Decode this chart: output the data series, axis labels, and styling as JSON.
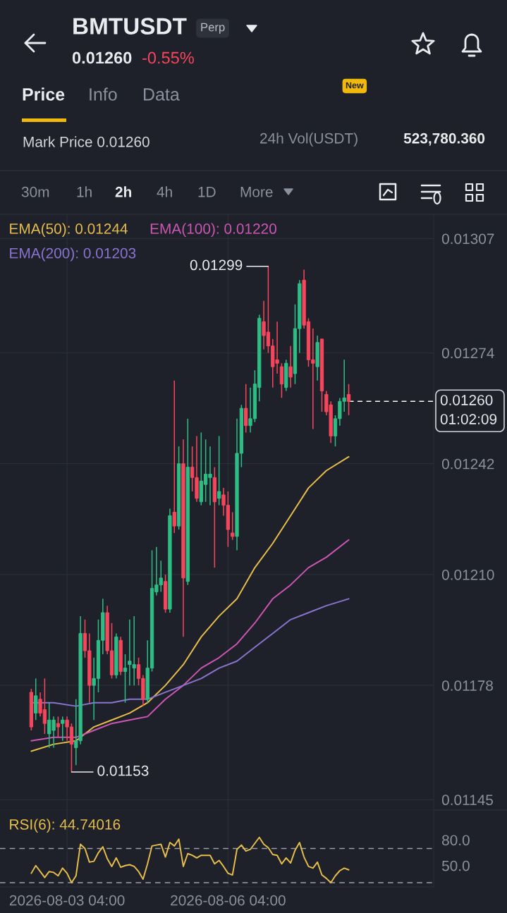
{
  "chart_data": [
    {
      "type": "candlestick",
      "title": "BMTUSDT",
      "x": [
        "2026-08-02T12:00",
        "2026-08-02T14:00",
        "2026-08-02T16:00",
        "2026-08-02T18:00",
        "2026-08-02T20:00",
        "2026-08-02T22:00",
        "2026-08-03T00:00",
        "2026-08-03T02:00",
        "2026-08-03T04:00",
        "2026-08-03T06:00",
        "2026-08-03T08:00",
        "2026-08-03T10:00",
        "2026-08-03T12:00",
        "2026-08-03T14:00",
        "2026-08-03T16:00",
        "2026-08-03T18:00",
        "2026-08-03T20:00",
        "2026-08-03T22:00",
        "2026-08-04T00:00",
        "2026-08-04T02:00",
        "2026-08-04T04:00",
        "2026-08-04T06:00",
        "2026-08-04T08:00",
        "2026-08-04T10:00",
        "2026-08-04T12:00",
        "2026-08-04T14:00",
        "2026-08-04T16:00",
        "2026-08-04T18:00",
        "2026-08-04T20:00",
        "2026-08-04T22:00",
        "2026-08-05T00:00",
        "2026-08-05T02:00",
        "2026-08-05T04:00",
        "2026-08-05T06:00",
        "2026-08-05T08:00",
        "2026-08-05T10:00",
        "2026-08-05T12:00",
        "2026-08-05T14:00",
        "2026-08-05T16:00",
        "2026-08-05T18:00",
        "2026-08-05T20:00",
        "2026-08-05T22:00",
        "2026-08-06T00:00",
        "2026-08-06T02:00",
        "2026-08-06T04:00",
        "2026-08-06T06:00",
        "2026-08-06T08:00",
        "2026-08-06T10:00",
        "2026-08-06T12:00",
        "2026-08-06T14:00",
        "2026-08-06T16:00",
        "2026-08-06T18:00",
        "2026-08-06T20:00",
        "2026-08-06T22:00",
        "2026-08-07T00:00",
        "2026-08-07T02:00",
        "2026-08-07T04:00",
        "2026-08-07T06:00",
        "2026-08-07T08:00",
        "2026-08-07T10:00",
        "2026-08-07T12:00",
        "2026-08-07T14:00",
        "2026-08-07T16:00",
        "2026-08-07T18:00",
        "2026-08-07T20:00",
        "2026-08-07T22:00",
        "2026-08-08T00:00",
        "2026-08-08T02:00",
        "2026-08-08T04:00",
        "2026-08-08T06:00",
        "2026-08-08T08:00",
        "2026-08-08T10:00"
      ],
      "ohlc": [
        [
          0.01176,
          0.01177,
          0.01165,
          0.01166
        ],
        [
          0.0117,
          0.0118,
          0.01168,
          0.01175
        ],
        [
          0.01174,
          0.01176,
          0.01169,
          0.0117
        ],
        [
          0.01171,
          0.0118,
          0.01164,
          0.01167
        ],
        [
          0.01164,
          0.01173,
          0.0116,
          0.01168
        ],
        [
          0.01165,
          0.01169,
          0.0116,
          0.01168
        ],
        [
          0.01167,
          0.01169,
          0.01163,
          0.01166
        ],
        [
          0.01167,
          0.01169,
          0.01162,
          0.01168
        ],
        [
          0.01168,
          0.01169,
          0.01162,
          0.01166
        ],
        [
          0.01166,
          0.01167,
          0.01153,
          0.01161
        ],
        [
          0.0116,
          0.01174,
          0.01155,
          0.01162
        ],
        [
          0.01162,
          0.01198,
          0.01161,
          0.01193
        ],
        [
          0.01193,
          0.01197,
          0.01186,
          0.01188
        ],
        [
          0.01188,
          0.01193,
          0.01173,
          0.01178
        ],
        [
          0.01178,
          0.01186,
          0.01168,
          0.0118
        ],
        [
          0.0118,
          0.01197,
          0.01176,
          0.01191
        ],
        [
          0.01191,
          0.01203,
          0.01187,
          0.01199
        ],
        [
          0.01199,
          0.01201,
          0.01187,
          0.01188
        ],
        [
          0.01188,
          0.01196,
          0.0118,
          0.01181
        ],
        [
          0.01181,
          0.01193,
          0.0118,
          0.01192
        ],
        [
          0.01191,
          0.01192,
          0.01181,
          0.01182
        ],
        [
          0.01182,
          0.01187,
          0.01173,
          0.01183
        ],
        [
          0.01184,
          0.01197,
          0.01178,
          0.01185
        ],
        [
          0.01183,
          0.01198,
          0.01178,
          0.01184
        ],
        [
          0.01184,
          0.01186,
          0.01178,
          0.0118
        ],
        [
          0.0118,
          0.01181,
          0.01172,
          0.01174
        ],
        [
          0.01174,
          0.01191,
          0.01173,
          0.01183
        ],
        [
          0.01183,
          0.01217,
          0.01182,
          0.01206
        ],
        [
          0.01205,
          0.01218,
          0.01204,
          0.01207
        ],
        [
          0.01207,
          0.01214,
          0.01205,
          0.01209
        ],
        [
          0.01208,
          0.0121,
          0.01199,
          0.012
        ],
        [
          0.012,
          0.01229,
          0.01199,
          0.01227
        ],
        [
          0.01228,
          0.01266,
          0.01222,
          0.01224
        ],
        [
          0.01224,
          0.01247,
          0.01223,
          0.01242
        ],
        [
          0.01242,
          0.01249,
          0.01192,
          0.01209
        ],
        [
          0.01208,
          0.01255,
          0.01207,
          0.01241
        ],
        [
          0.01241,
          0.01247,
          0.01234,
          0.01238
        ],
        [
          0.01238,
          0.0125,
          0.01231,
          0.01232
        ],
        [
          0.01231,
          0.01251,
          0.0123,
          0.01237
        ],
        [
          0.01236,
          0.01249,
          0.01231,
          0.01239
        ],
        [
          0.01238,
          0.01247,
          0.0123,
          0.01239
        ],
        [
          0.01238,
          0.01241,
          0.01212,
          0.01231
        ],
        [
          0.01232,
          0.0125,
          0.0123,
          0.01234
        ],
        [
          0.01233,
          0.01235,
          0.01227,
          0.0123
        ],
        [
          0.0123,
          0.01234,
          0.01218,
          0.01223
        ],
        [
          0.01222,
          0.01228,
          0.0122,
          0.01221
        ],
        [
          0.01221,
          0.01255,
          0.01217,
          0.01245
        ],
        [
          0.01245,
          0.01259,
          0.01241,
          0.01258
        ],
        [
          0.01258,
          0.01265,
          0.01251,
          0.01253
        ],
        [
          0.01253,
          0.01264,
          0.01251,
          0.01255
        ],
        [
          0.01255,
          0.01269,
          0.01254,
          0.01265
        ],
        [
          0.01264,
          0.01285,
          0.0126,
          0.01284
        ],
        [
          0.01283,
          0.01289,
          0.01275,
          0.01279
        ],
        [
          0.0128,
          0.01299,
          0.01274,
          0.01276
        ],
        [
          0.01276,
          0.01278,
          0.01264,
          0.0127
        ],
        [
          0.01272,
          0.01283,
          0.01268,
          0.01271
        ],
        [
          0.0127,
          0.01271,
          0.01261,
          0.01265
        ],
        [
          0.01264,
          0.01272,
          0.01263,
          0.01271
        ],
        [
          0.0127,
          0.01276,
          0.01264,
          0.01267
        ],
        [
          0.01268,
          0.01288,
          0.01265,
          0.01281
        ],
        [
          0.01281,
          0.01295,
          0.01274,
          0.01294
        ],
        [
          0.01295,
          0.01298,
          0.01281,
          0.01282
        ],
        [
          0.01283,
          0.01284,
          0.0127,
          0.01272
        ],
        [
          0.01272,
          0.01281,
          0.01252,
          0.01271
        ],
        [
          0.0127,
          0.01279,
          0.01266,
          0.01277
        ],
        [
          0.01278,
          0.01278,
          0.01257,
          0.01263
        ],
        [
          0.01262,
          0.01263,
          0.01256,
          0.01257
        ],
        [
          0.01259,
          0.0126,
          0.01248,
          0.0125
        ],
        [
          0.0125,
          0.01256,
          0.01247,
          0.01255
        ],
        [
          0.01255,
          0.01261,
          0.01253,
          0.0126
        ],
        [
          0.0126,
          0.01272,
          0.01257,
          0.01261
        ],
        [
          0.01262,
          0.01265,
          0.01256,
          0.0126
        ]
      ],
      "colors": [
        "#f6465d",
        "#2ebd85",
        "#f6465d",
        "#f6465d",
        "#2ebd85",
        "#2ebd85",
        "#f6465d",
        "#2ebd85",
        "#f6465d",
        "#f6465d",
        "#2ebd85",
        "#2ebd85",
        "#f6465d",
        "#f6465d",
        "#2ebd85",
        "#2ebd85",
        "#2ebd85",
        "#f6465d",
        "#f6465d",
        "#2ebd85",
        "#f6465d",
        "#2ebd85",
        "#2ebd85",
        "#2ebd85",
        "#f6465d",
        "#f6465d",
        "#2ebd85",
        "#2ebd85",
        "#2ebd85",
        "#2ebd85",
        "#f6465d",
        "#2ebd85",
        "#f6465d",
        "#2ebd85",
        "#f6465d",
        "#2ebd85",
        "#f6465d",
        "#f6465d",
        "#2ebd85",
        "#2ebd85",
        "#2ebd85",
        "#f6465d",
        "#2ebd85",
        "#f6465d",
        "#f6465d",
        "#f6465d",
        "#2ebd85",
        "#2ebd85",
        "#f6465d",
        "#2ebd85",
        "#2ebd85",
        "#2ebd85",
        "#f6465d",
        "#f6465d",
        "#f6465d",
        "#f6465d",
        "#f6465d",
        "#2ebd85",
        "#f6465d",
        "#2ebd85",
        "#2ebd85",
        "#f6465d",
        "#f6465d",
        "#f6465d",
        "#2ebd85",
        "#f6465d",
        "#f6465d",
        "#f6465d",
        "#2ebd85",
        "#2ebd85",
        "#2ebd85",
        "#f6465d"
      ],
      "series": [
        {
          "name": "EMA(50): 0.01244",
          "type": "line",
          "color": "#e8bf4a",
          "x": [
            "2026-08-02T12:00",
            "2026-08-02T22:00",
            "2026-08-03T08:00",
            "2026-08-03T16:00",
            "2026-08-04T00:00",
            "2026-08-04T08:00",
            "2026-08-04T16:00",
            "2026-08-05T00:00",
            "2026-08-05T08:00",
            "2026-08-05T16:00",
            "2026-08-06T00:00",
            "2026-08-06T08:00",
            "2026-08-06T16:00",
            "2026-08-07T00:00",
            "2026-08-07T08:00",
            "2026-08-07T16:00",
            "2026-08-08T00:00",
            "2026-08-08T10:00"
          ],
          "values": [
            0.01159,
            0.01161,
            0.01162,
            0.01166,
            0.01168,
            0.0117,
            0.01173,
            0.01178,
            0.01184,
            0.01192,
            0.01198,
            0.01203,
            0.01212,
            0.01219,
            0.01227,
            0.01235,
            0.0124,
            0.01244
          ]
        },
        {
          "name": "EMA(100): 0.01220",
          "type": "line",
          "color": "#cf56b4",
          "x": [
            "2026-08-02T12:00",
            "2026-08-02T22:00",
            "2026-08-03T08:00",
            "2026-08-03T16:00",
            "2026-08-04T00:00",
            "2026-08-04T08:00",
            "2026-08-04T16:00",
            "2026-08-05T00:00",
            "2026-08-05T08:00",
            "2026-08-05T16:00",
            "2026-08-06T00:00",
            "2026-08-06T08:00",
            "2026-08-06T16:00",
            "2026-08-07T00:00",
            "2026-08-07T08:00",
            "2026-08-07T16:00",
            "2026-08-08T00:00",
            "2026-08-08T10:00"
          ],
          "values": [
            0.01162,
            0.01163,
            0.01163,
            0.01165,
            0.01167,
            0.01168,
            0.01169,
            0.01174,
            0.01178,
            0.01183,
            0.01186,
            0.0119,
            0.01196,
            0.01203,
            0.01207,
            0.01212,
            0.01215,
            0.0122
          ]
        },
        {
          "name": "EMA(200): 0.01203",
          "type": "line",
          "color": "#8a74d0",
          "x": [
            "2026-08-02T12:00",
            "2026-08-02T22:00",
            "2026-08-03T08:00",
            "2026-08-03T16:00",
            "2026-08-04T00:00",
            "2026-08-04T08:00",
            "2026-08-04T16:00",
            "2026-08-05T00:00",
            "2026-08-05T08:00",
            "2026-08-05T16:00",
            "2026-08-06T00:00",
            "2026-08-06T08:00",
            "2026-08-06T16:00",
            "2026-08-07T00:00",
            "2026-08-07T08:00",
            "2026-08-07T16:00",
            "2026-08-08T00:00",
            "2026-08-08T10:00"
          ],
          "values": [
            0.01173,
            0.01173,
            0.01172,
            0.01173,
            0.01173,
            0.01174,
            0.01174,
            0.01176,
            0.01178,
            0.0118,
            0.01183,
            0.01185,
            0.01189,
            0.01193,
            0.01197,
            0.01199,
            0.01201,
            0.01203
          ]
        }
      ],
      "xlim": [
        "2026-08-01T22:00",
        "2026-08-10T00:00"
      ],
      "ylim": [
        0.01142,
        0.01314
      ],
      "xticks": [
        {
          "value": "2026-08-03T04:00",
          "label": null
        },
        {
          "value": "2026-08-06T04:00",
          "label": null
        }
      ],
      "yticks": [
        0.01145,
        0.01178,
        {
          "value": 0.0121,
          "label": "0.01210"
        },
        0.01242,
        0.01274,
        0.01307
      ],
      "tick_labels": "y",
      "grid": true,
      "legend": "top left",
      "ref_lines": [
        {
          "axis": "y",
          "value": 0.0126,
          "line_style": "dashed",
          "color": "#ffffff"
        }
      ],
      "annotations": [
        "Perp",
        "0.01260",
        "-0.55%",
        "Price",
        "Info",
        "Data",
        "New",
        "Mark Price 0.01260",
        "24h Vol(USDT)",
        "523,780.360",
        "30m",
        "1h",
        "2h",
        "4h",
        "1D",
        "More",
        "0.01260",
        "01:02:09",
        {
          "text": "0.01299",
          "x": "2026-08-06T22:00",
          "y": 0.01299
        },
        {
          "text": "0.01153",
          "x": "2026-08-03T06:00",
          "y": 0.01153
        }
      ]
    },
    {
      "type": "line",
      "x": [
        "2026-08-02T12:00",
        "2026-08-02T14:00",
        "2026-08-02T16:00",
        "2026-08-02T18:00",
        "2026-08-02T20:00",
        "2026-08-02T22:00",
        "2026-08-03T00:00",
        "2026-08-03T02:00",
        "2026-08-03T04:00",
        "2026-08-03T06:00",
        "2026-08-03T08:00",
        "2026-08-03T10:00",
        "2026-08-03T12:00",
        "2026-08-03T14:00",
        "2026-08-03T16:00",
        "2026-08-03T18:00",
        "2026-08-03T20:00",
        "2026-08-03T22:00",
        "2026-08-04T00:00",
        "2026-08-04T02:00",
        "2026-08-04T04:00",
        "2026-08-04T06:00",
        "2026-08-04T08:00",
        "2026-08-04T10:00",
        "2026-08-04T12:00",
        "2026-08-04T14:00",
        "2026-08-04T16:00",
        "2026-08-04T18:00",
        "2026-08-04T20:00",
        "2026-08-04T22:00",
        "2026-08-05T00:00",
        "2026-08-05T02:00",
        "2026-08-05T04:00",
        "2026-08-05T06:00",
        "2026-08-05T08:00",
        "2026-08-05T10:00",
        "2026-08-05T12:00",
        "2026-08-05T14:00",
        "2026-08-05T16:00",
        "2026-08-05T18:00",
        "2026-08-05T20:00",
        "2026-08-05T22:00",
        "2026-08-06T00:00",
        "2026-08-06T02:00",
        "2026-08-06T04:00",
        "2026-08-06T06:00",
        "2026-08-06T08:00",
        "2026-08-06T10:00",
        "2026-08-06T12:00",
        "2026-08-06T14:00",
        "2026-08-06T16:00",
        "2026-08-06T18:00",
        "2026-08-06T20:00",
        "2026-08-06T22:00",
        "2026-08-07T00:00",
        "2026-08-07T02:00",
        "2026-08-07T04:00",
        "2026-08-07T06:00",
        "2026-08-07T08:00",
        "2026-08-07T10:00",
        "2026-08-07T12:00",
        "2026-08-07T14:00",
        "2026-08-07T16:00",
        "2026-08-07T18:00",
        "2026-08-07T20:00",
        "2026-08-07T22:00",
        "2026-08-08T00:00",
        "2026-08-08T02:00",
        "2026-08-08T04:00",
        "2026-08-08T06:00",
        "2026-08-08T08:00",
        "2026-08-08T10:00"
      ],
      "series": [
        {
          "name": "RSI(6): 44.74016",
          "color": "#e8bf4a",
          "values": [
            41,
            50,
            43,
            36,
            43,
            42,
            38,
            47,
            41,
            30,
            38,
            75,
            70,
            54,
            55,
            65,
            72,
            58,
            49,
            59,
            48,
            50,
            51,
            49,
            43,
            34,
            52,
            73,
            74,
            75,
            60,
            77,
            73,
            81,
            49,
            64,
            62,
            59,
            62,
            62,
            62,
            52,
            56,
            49,
            41,
            39,
            69,
            74,
            67,
            69,
            76,
            83,
            75,
            71,
            63,
            62,
            52,
            59,
            53,
            68,
            77,
            60,
            49,
            47,
            54,
            39,
            35,
            30,
            38,
            44,
            47,
            45
          ]
        }
      ],
      "xlim": [
        "2026-08-01T22:00",
        "2026-08-10T00:00"
      ],
      "ylim": [
        25,
        115
      ],
      "xticks": [
        {
          "value": "2026-08-03T04:00",
          "label": "2026-08-03 04:00"
        },
        {
          "value": "2026-08-06T04:00",
          "label": "2026-08-06 04:00"
        }
      ],
      "yticks": [
        {
          "value": 80,
          "label": "80.0"
        },
        {
          "value": 50,
          "label": "50.0"
        }
      ],
      "grid": "x",
      "legend": "top left",
      "ref_lines": [
        {
          "axis": "y",
          "value": 70,
          "line_style": "dashed",
          "color": "#9aa0aa"
        },
        {
          "axis": "y",
          "value": 30,
          "line_style": "dashed",
          "color": "#9aa0aa"
        }
      ]
    }
  ]
}
